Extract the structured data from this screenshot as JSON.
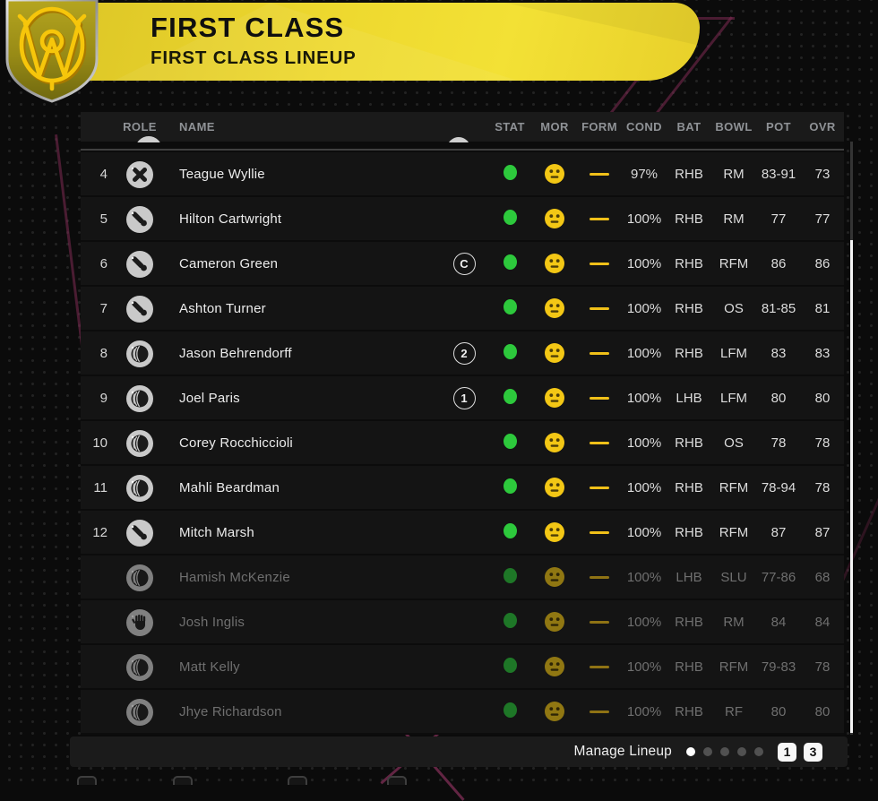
{
  "header": {
    "title": "FIRST CLASS",
    "subtitle": "FIRST CLASS LINEUP",
    "crest_icon": "team-crest-shield",
    "banner_color": "#eed92f"
  },
  "table": {
    "columns": [
      "ROLE",
      "NAME",
      "STAT",
      "MOR",
      "FORM",
      "COND",
      "BAT",
      "BOWL",
      "POT",
      "OVR"
    ],
    "rows": [
      {
        "num": "4",
        "role": "batter",
        "role_icon": "batter-icon",
        "name": "Teague Wyllie",
        "badge": "",
        "status": "fit",
        "morale": "neutral",
        "form": "steady",
        "cond": "97%",
        "bat": "RHB",
        "bowl": "RM",
        "pot": "83-91",
        "ovr": "73",
        "active": true
      },
      {
        "num": "5",
        "role": "allrounder",
        "role_icon": "allrounder-icon",
        "name": "Hilton Cartwright",
        "badge": "",
        "status": "fit",
        "morale": "neutral",
        "form": "steady",
        "cond": "100%",
        "bat": "RHB",
        "bowl": "RM",
        "pot": "77",
        "ovr": "77",
        "active": true
      },
      {
        "num": "6",
        "role": "allrounder",
        "role_icon": "allrounder-icon",
        "name": "Cameron Green",
        "badge": "C",
        "status": "fit",
        "morale": "neutral",
        "form": "steady",
        "cond": "100%",
        "bat": "RHB",
        "bowl": "RFM",
        "pot": "86",
        "ovr": "86",
        "active": true
      },
      {
        "num": "7",
        "role": "allrounder",
        "role_icon": "allrounder-icon",
        "name": "Ashton Turner",
        "badge": "",
        "status": "fit",
        "morale": "neutral",
        "form": "steady",
        "cond": "100%",
        "bat": "RHB",
        "bowl": "OS",
        "pot": "81-85",
        "ovr": "81",
        "active": true
      },
      {
        "num": "8",
        "role": "bowler",
        "role_icon": "bowler-icon",
        "name": "Jason Behrendorff",
        "badge": "2",
        "status": "fit",
        "morale": "neutral",
        "form": "steady",
        "cond": "100%",
        "bat": "RHB",
        "bowl": "LFM",
        "pot": "83",
        "ovr": "83",
        "active": true
      },
      {
        "num": "9",
        "role": "bowler",
        "role_icon": "bowler-icon",
        "name": "Joel Paris",
        "badge": "1",
        "status": "fit",
        "morale": "neutral",
        "form": "steady",
        "cond": "100%",
        "bat": "LHB",
        "bowl": "LFM",
        "pot": "80",
        "ovr": "80",
        "active": true
      },
      {
        "num": "10",
        "role": "bowler",
        "role_icon": "bowler-icon",
        "name": "Corey Rocchiccioli",
        "badge": "",
        "status": "fit",
        "morale": "neutral",
        "form": "steady",
        "cond": "100%",
        "bat": "RHB",
        "bowl": "OS",
        "pot": "78",
        "ovr": "78",
        "active": true
      },
      {
        "num": "11",
        "role": "bowler",
        "role_icon": "bowler-icon",
        "name": "Mahli Beardman",
        "badge": "",
        "status": "fit",
        "morale": "neutral",
        "form": "steady",
        "cond": "100%",
        "bat": "RHB",
        "bowl": "RFM",
        "pot": "78-94",
        "ovr": "78",
        "active": true
      },
      {
        "num": "12",
        "role": "allrounder",
        "role_icon": "allrounder-icon",
        "name": "Mitch Marsh",
        "badge": "",
        "status": "fit",
        "morale": "neutral",
        "form": "steady",
        "cond": "100%",
        "bat": "RHB",
        "bowl": "RFM",
        "pot": "87",
        "ovr": "87",
        "active": true
      },
      {
        "num": "",
        "role": "bowler",
        "role_icon": "bowler-icon",
        "name": "Hamish McKenzie",
        "badge": "",
        "status": "fit",
        "morale": "neutral",
        "form": "steady",
        "cond": "100%",
        "bat": "LHB",
        "bowl": "SLU",
        "pot": "77-86",
        "ovr": "68",
        "active": false
      },
      {
        "num": "",
        "role": "keeper",
        "role_icon": "wicketkeeper-icon",
        "name": "Josh Inglis",
        "badge": "",
        "status": "fit",
        "morale": "neutral",
        "form": "steady",
        "cond": "100%",
        "bat": "RHB",
        "bowl": "RM",
        "pot": "84",
        "ovr": "84",
        "active": false
      },
      {
        "num": "",
        "role": "bowler",
        "role_icon": "bowler-icon",
        "name": "Matt Kelly",
        "badge": "",
        "status": "fit",
        "morale": "neutral",
        "form": "steady",
        "cond": "100%",
        "bat": "RHB",
        "bowl": "RFM",
        "pot": "79-83",
        "ovr": "78",
        "active": false
      },
      {
        "num": "",
        "role": "bowler",
        "role_icon": "bowler-icon",
        "name": "Jhye Richardson",
        "badge": "",
        "status": "fit",
        "morale": "neutral",
        "form": "steady",
        "cond": "100%",
        "bat": "RHB",
        "bowl": "RF",
        "pot": "80",
        "ovr": "80",
        "active": false
      }
    ]
  },
  "footer": {
    "manage_label": "Manage Lineup",
    "page_dots": {
      "count": 5,
      "active_index": 0
    },
    "key_hints": [
      "1",
      "3"
    ]
  },
  "colors": {
    "status_green": "#2dc93c",
    "morale_yellow": "#f3c715",
    "form_dash": "#f0c019",
    "row_bg": "#141414",
    "inactive_text": "#6f6f6f",
    "accent_line": "#80345a"
  }
}
